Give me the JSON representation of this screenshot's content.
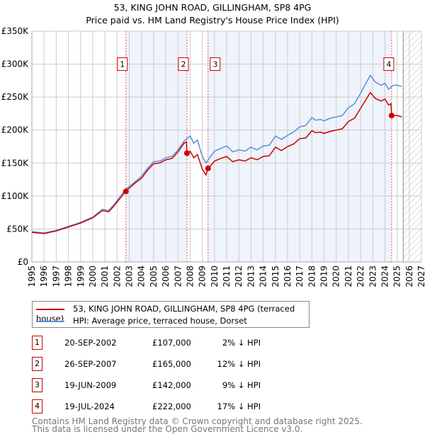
{
  "title": "53, KING JOHN ROAD, GILLINGHAM, SP8 4PG",
  "subtitle": "Price paid vs. HM Land Registry's House Price Index (HPI)",
  "legend": {
    "property": "53, KING JOHN ROAD, GILLINGHAM, SP8 4PG (terraced house)",
    "hpi": "HPI: Average price, terraced house, Dorset"
  },
  "colors": {
    "property": "#cc0000",
    "hpi": "#5b8fd4",
    "shade": "#eef3fc"
  },
  "transactions": [
    {
      "num": "1",
      "date": "20-SEP-2002",
      "price": "£107,000",
      "diff": "2% ↓ HPI"
    },
    {
      "num": "2",
      "date": "26-SEP-2007",
      "price": "£165,000",
      "diff": "12% ↓ HPI"
    },
    {
      "num": "3",
      "date": "19-JUN-2009",
      "price": "£142,000",
      "diff": "9% ↓ HPI"
    },
    {
      "num": "4",
      "date": "19-JUL-2024",
      "price": "£222,000",
      "diff": "17% ↓ HPI"
    }
  ],
  "footer": [
    "Contains HM Land Registry data © Crown copyright and database right 2025.",
    "This data is licensed under the Open Government Licence v3.0."
  ],
  "chart_data": {
    "type": "line",
    "xlim": [
      1995,
      2027
    ],
    "ylim": [
      0,
      350000
    ],
    "yticks": [
      {
        "v": 0,
        "label": "£0"
      },
      {
        "v": 50000,
        "label": "£50K"
      },
      {
        "v": 100000,
        "label": "£100K"
      },
      {
        "v": 150000,
        "label": "£150K"
      },
      {
        "v": 200000,
        "label": "£200K"
      },
      {
        "v": 250000,
        "label": "£250K"
      },
      {
        "v": 300000,
        "label": "£300K"
      },
      {
        "v": 350000,
        "label": "£350K"
      }
    ],
    "xticks": [
      "1995",
      "1996",
      "1997",
      "1998",
      "1999",
      "2000",
      "2001",
      "2002",
      "2003",
      "2004",
      "2005",
      "2006",
      "2007",
      "2008",
      "2009",
      "2010",
      "2011",
      "2012",
      "2013",
      "2014",
      "2015",
      "2016",
      "2017",
      "2018",
      "2019",
      "2020",
      "2021",
      "2022",
      "2023",
      "2024",
      "2025",
      "2026",
      "2027"
    ],
    "shaded_ranges": [
      [
        2002.72,
        2007.74
      ],
      [
        2009.47,
        2024.55
      ]
    ],
    "forecast_start": 2025.5,
    "sales": [
      {
        "label": "1",
        "x": 2002.72,
        "y": 107000
      },
      {
        "label": "2",
        "x": 2007.74,
        "y": 165000
      },
      {
        "label": "3",
        "x": 2009.47,
        "y": 142000
      },
      {
        "label": "4",
        "x": 2024.55,
        "y": 222000
      }
    ],
    "series": [
      {
        "name": "HPI",
        "x": [
          1995,
          1996,
          1997,
          1998,
          1999,
          2000,
          2000.8,
          2001.3,
          2001.7,
          2002.7,
          2003.5,
          2004,
          2004.5,
          2005,
          2005.5,
          2006,
          2006.5,
          2007,
          2007.5,
          2008,
          2008.3,
          2008.6,
          2009,
          2009.3,
          2009.6,
          2010,
          2010.5,
          2011,
          2011.5,
          2012,
          2012.5,
          2013,
          2013.5,
          2014,
          2014.5,
          2015,
          2015.5,
          2016,
          2016.5,
          2017,
          2017.5,
          2018,
          2018.3,
          2018.7,
          2019,
          2019.5,
          2020,
          2020.5,
          2021,
          2021.5,
          2022,
          2022.5,
          2022.8,
          2023.2,
          2023.7,
          2024,
          2024.3,
          2024.7,
          2025,
          2025.4
        ],
        "values": [
          46,
          44,
          48,
          54,
          60,
          68,
          80,
          78,
          86,
          110,
          122,
          130,
          142,
          152,
          153,
          158,
          160,
          170,
          183,
          191,
          180,
          185,
          160,
          150,
          158,
          168,
          172,
          176,
          167,
          170,
          168,
          174,
          170,
          176,
          177,
          191,
          186,
          192,
          197,
          205,
          207,
          219,
          215,
          216,
          214,
          218,
          220,
          222,
          234,
          240,
          256,
          273,
          283,
          273,
          268,
          271,
          262,
          268,
          268,
          266
        ]
      },
      {
        "name": "Property",
        "x": [
          1995,
          1996,
          1997,
          1998,
          1999,
          2000,
          2000.8,
          2001.3,
          2001.7,
          2002.7,
          2003.5,
          2004,
          2004.5,
          2005,
          2005.5,
          2006,
          2006.5,
          2007,
          2007.5,
          2007.7,
          2007.74,
          2008,
          2008.3,
          2008.6,
          2009,
          2009.3,
          2009.47,
          2009.6,
          2010,
          2010.5,
          2011,
          2011.5,
          2012,
          2012.5,
          2013,
          2013.5,
          2014,
          2014.5,
          2015,
          2015.5,
          2016,
          2016.5,
          2017,
          2017.5,
          2018,
          2018.3,
          2018.7,
          2019,
          2019.5,
          2020,
          2020.5,
          2021,
          2021.5,
          2022,
          2022.5,
          2022.8,
          2023.2,
          2023.7,
          2024,
          2024.3,
          2024.5,
          2024.55,
          2024.7,
          2025,
          2025.4
        ],
        "values": [
          45,
          43,
          47,
          53,
          59,
          67,
          78,
          76,
          84,
          107,
          120,
          127,
          139,
          149,
          150,
          155,
          157,
          167,
          180,
          182,
          165,
          168,
          158,
          163,
          141,
          132,
          142,
          144,
          153,
          157,
          160,
          152,
          155,
          153,
          158,
          155,
          160,
          161,
          174,
          169,
          175,
          179,
          187,
          188,
          199,
          196,
          197,
          195,
          198,
          200,
          202,
          213,
          218,
          233,
          248,
          257,
          248,
          244,
          247,
          238,
          240,
          222,
          222,
          222,
          220
        ]
      }
    ]
  }
}
